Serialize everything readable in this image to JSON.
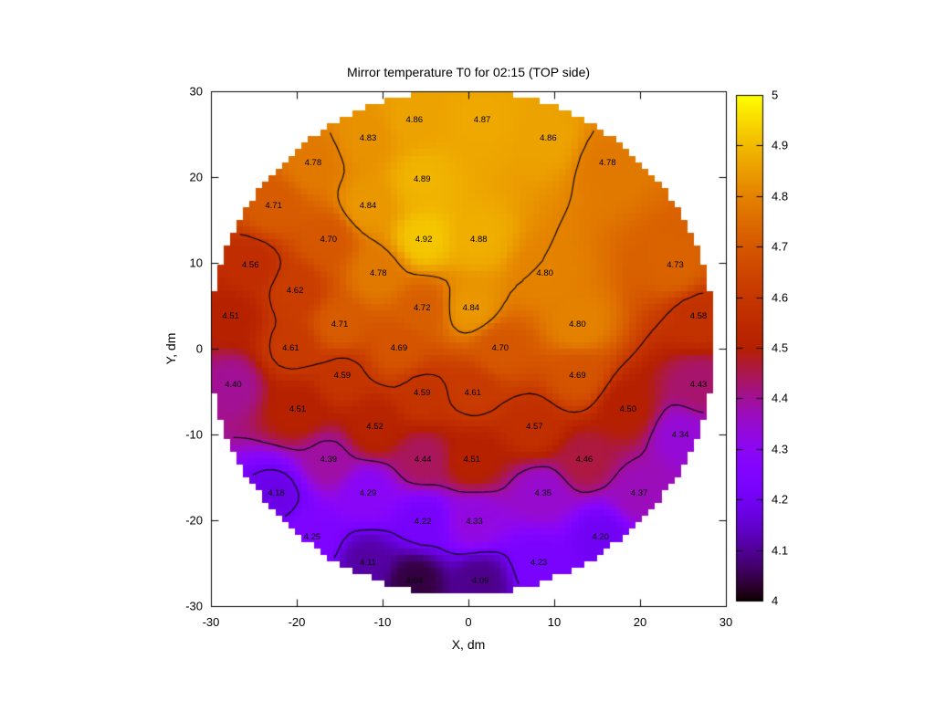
{
  "chart_data": {
    "type": "heatmap",
    "title": "Mirror temperature T0 for 02:15 (TOP side)",
    "xlabel": "X, dm",
    "ylabel": "Y, dm",
    "xlim": [
      -30,
      30
    ],
    "ylim": [
      -30,
      30
    ],
    "x_tick_labels": [
      "-30",
      "-20",
      "-10",
      "0",
      "10",
      "20",
      "30"
    ],
    "y_tick_labels": [
      "-30",
      "-20",
      "-10",
      "0",
      "10",
      "20",
      "30"
    ],
    "grid": false,
    "colorbar": {
      "min": 4,
      "max": 5,
      "tick_labels": [
        "4",
        "4.1",
        "4.2",
        "4.3",
        "4.4",
        "4.5",
        "4.6",
        "4.7",
        "4.8",
        "4.9",
        "5"
      ],
      "position": "right"
    },
    "palette": {
      "name": "gnuplot-pm3d-black-purple-red-yellow",
      "stops": [
        "#000000",
        "#510096",
        "#7202f2",
        "#8c07f3",
        "#a11096",
        "#b42000",
        "#c63700",
        "#d55700",
        "#e48300",
        "#f2ba00",
        "#ffff00"
      ]
    },
    "contour_levels": [
      4.2,
      4.4,
      4.6,
      4.8
    ],
    "contour_color": "#000000",
    "mask_circle": {
      "cx": -0.75,
      "cy": 0.8,
      "r": 29.5
    },
    "grid_cells": 80,
    "points": [
      {
        "x": -6.3,
        "y": 26.6,
        "v": 4.86
      },
      {
        "x": 1.6,
        "y": 26.6,
        "v": 4.87
      },
      {
        "x": -11.7,
        "y": 24.5,
        "v": 4.83
      },
      {
        "x": 9.3,
        "y": 24.5,
        "v": 4.86
      },
      {
        "x": -18.1,
        "y": 21.6,
        "v": 4.78
      },
      {
        "x": 16.2,
        "y": 21.6,
        "v": 4.78
      },
      {
        "x": -5.4,
        "y": 19.7,
        "v": 4.89
      },
      {
        "x": -22.7,
        "y": 16.6,
        "v": 4.71
      },
      {
        "x": -11.7,
        "y": 16.6,
        "v": 4.84
      },
      {
        "x": -16.3,
        "y": 12.7,
        "v": 4.7
      },
      {
        "x": -5.2,
        "y": 12.7,
        "v": 4.92
      },
      {
        "x": 1.2,
        "y": 12.7,
        "v": 4.88
      },
      {
        "x": -25.4,
        "y": 9.7,
        "v": 4.56
      },
      {
        "x": -10.5,
        "y": 8.7,
        "v": 4.78
      },
      {
        "x": 8.9,
        "y": 8.7,
        "v": 4.8
      },
      {
        "x": 24.1,
        "y": 9.7,
        "v": 4.73
      },
      {
        "x": -20.2,
        "y": 6.7,
        "v": 4.62
      },
      {
        "x": -5.4,
        "y": 4.7,
        "v": 4.72
      },
      {
        "x": 0.3,
        "y": 4.7,
        "v": 4.84
      },
      {
        "x": -27.7,
        "y": 3.7,
        "v": 4.51
      },
      {
        "x": 26.8,
        "y": 3.7,
        "v": 4.58
      },
      {
        "x": -15.0,
        "y": 2.8,
        "v": 4.71
      },
      {
        "x": 12.7,
        "y": 2.8,
        "v": 4.8
      },
      {
        "x": -20.7,
        "y": 0.0,
        "v": 4.61
      },
      {
        "x": -8.1,
        "y": 0.0,
        "v": 4.69
      },
      {
        "x": 3.7,
        "y": 0.0,
        "v": 4.7
      },
      {
        "x": -14.7,
        "y": -3.2,
        "v": 4.59
      },
      {
        "x": 12.7,
        "y": -3.2,
        "v": 4.69
      },
      {
        "x": -27.4,
        "y": -4.3,
        "v": 4.4
      },
      {
        "x": 26.8,
        "y": -4.3,
        "v": 4.43
      },
      {
        "x": -5.4,
        "y": -5.2,
        "v": 4.59
      },
      {
        "x": 0.5,
        "y": -5.2,
        "v": 4.61
      },
      {
        "x": -19.9,
        "y": -7.1,
        "v": 4.51
      },
      {
        "x": 18.6,
        "y": -7.1,
        "v": 4.5
      },
      {
        "x": -10.9,
        "y": -9.1,
        "v": 4.52
      },
      {
        "x": 7.7,
        "y": -9.1,
        "v": 4.57
      },
      {
        "x": 24.7,
        "y": -10.1,
        "v": 4.34
      },
      {
        "x": -16.3,
        "y": -13.0,
        "v": 4.39
      },
      {
        "x": -5.3,
        "y": -13.0,
        "v": 4.44
      },
      {
        "x": 0.4,
        "y": -13.0,
        "v": 4.51
      },
      {
        "x": 13.5,
        "y": -13.0,
        "v": 4.46
      },
      {
        "x": -22.4,
        "y": -16.9,
        "v": 4.18
      },
      {
        "x": -11.7,
        "y": -16.9,
        "v": 4.29
      },
      {
        "x": 8.7,
        "y": -16.9,
        "v": 4.35
      },
      {
        "x": 19.9,
        "y": -16.9,
        "v": 4.37
      },
      {
        "x": -5.3,
        "y": -20.2,
        "v": 4.22
      },
      {
        "x": 0.7,
        "y": -20.2,
        "v": 4.33
      },
      {
        "x": -18.2,
        "y": -22.0,
        "v": 4.25
      },
      {
        "x": 15.4,
        "y": -22.0,
        "v": 4.2
      },
      {
        "x": -11.7,
        "y": -25.0,
        "v": 4.11
      },
      {
        "x": 8.2,
        "y": -25.0,
        "v": 4.23
      },
      {
        "x": -6.3,
        "y": -27.1,
        "v": 4.04
      },
      {
        "x": 1.4,
        "y": -27.1,
        "v": 4.09
      }
    ]
  }
}
